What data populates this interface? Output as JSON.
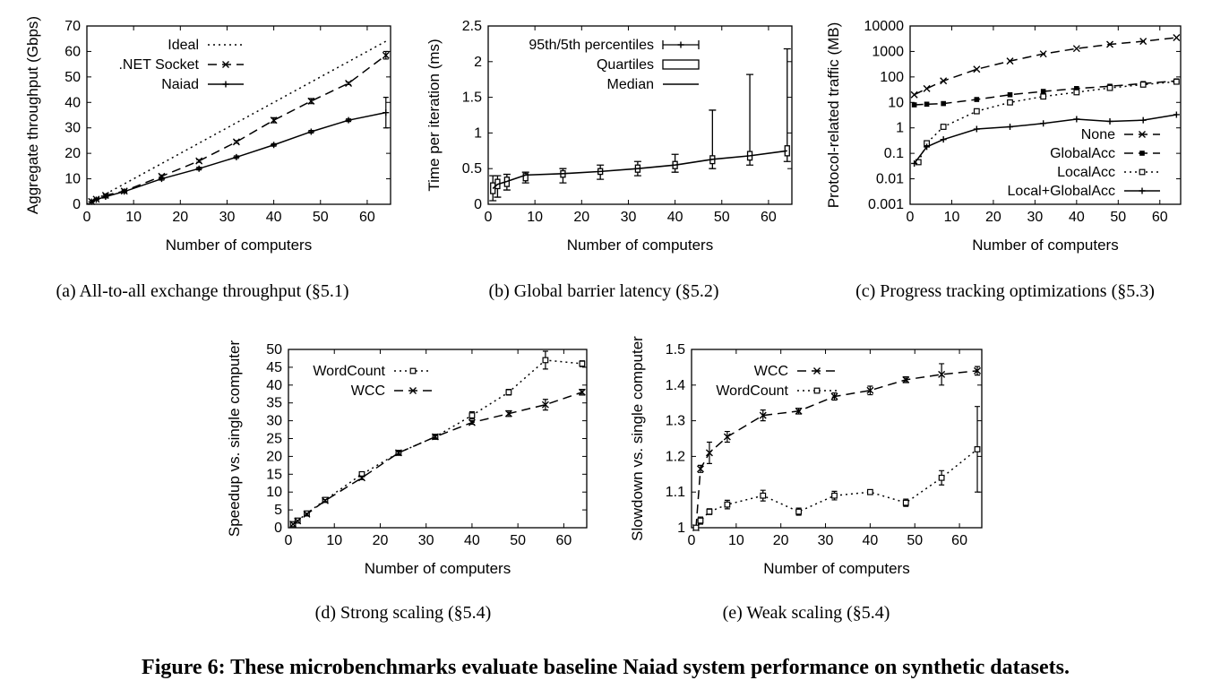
{
  "figure_caption": "Figure 6: These microbenchmarks evaluate baseline Naiad system performance on synthetic datasets.",
  "chart_data": [
    {
      "id": "a",
      "type": "line",
      "caption": "(a) All-to-all exchange throughput (§5.1)",
      "xlabel": "Number of computers",
      "ylabel": "Aggregate throughput (Gbps)",
      "xlim": [
        0,
        65
      ],
      "ylim": [
        0,
        70
      ],
      "xticks": [
        0,
        10,
        20,
        30,
        40,
        50,
        60
      ],
      "yticks": [
        0,
        10,
        20,
        30,
        40,
        50,
        60,
        70
      ],
      "log_y": false,
      "legend_position": "top-left",
      "series": [
        {
          "name": "Ideal",
          "style": "dotted",
          "marker": "none",
          "x": [
            0,
            64
          ],
          "y": [
            0,
            64
          ]
        },
        {
          "name": ".NET Socket",
          "style": "dashed",
          "marker": "x",
          "x": [
            1,
            2,
            4,
            8,
            16,
            24,
            32,
            40,
            48,
            56,
            64
          ],
          "y": [
            1.1,
            2.0,
            3.5,
            5.2,
            11,
            17,
            24.5,
            33,
            40.5,
            47.5,
            58.5
          ],
          "err": [
            0,
            0,
            0.5,
            0.5,
            0.5,
            0.5,
            0.5,
            1.0,
            1.0,
            0.5,
            1.5
          ]
        },
        {
          "name": "Naiad",
          "style": "solid",
          "marker": "plus",
          "x": [
            1,
            2,
            4,
            8,
            16,
            24,
            32,
            40,
            48,
            56,
            64
          ],
          "y": [
            1.0,
            1.8,
            3.0,
            5.0,
            10,
            14,
            18.5,
            23.3,
            28.5,
            33,
            36
          ],
          "err": [
            0,
            0,
            0.5,
            0.5,
            0.5,
            0.5,
            0.5,
            0.5,
            0.5,
            0.5,
            6
          ]
        }
      ]
    },
    {
      "id": "b",
      "type": "line",
      "caption": "(b) Global barrier latency (§5.2)",
      "xlabel": "Number of computers",
      "ylabel": "Time per iteration (ms)",
      "xlim": [
        0,
        65
      ],
      "ylim": [
        0,
        2.5
      ],
      "xticks": [
        0,
        10,
        20,
        30,
        40,
        50,
        60
      ],
      "yticks": [
        0,
        0.5,
        1,
        1.5,
        2,
        2.5
      ],
      "log_y": false,
      "legend_position": "top-left",
      "series": [
        {
          "name": "95th/5th percentiles",
          "style": "solid",
          "marker": "plus",
          "x": [
            1,
            2,
            4,
            8,
            16,
            24,
            32,
            40,
            48,
            56,
            64
          ],
          "low": [
            0.05,
            0.1,
            0.2,
            0.3,
            0.3,
            0.35,
            0.4,
            0.45,
            0.5,
            0.55,
            0.6
          ],
          "high": [
            0.4,
            0.4,
            0.42,
            0.45,
            0.5,
            0.55,
            0.6,
            0.7,
            1.32,
            1.82,
            2.18
          ]
        },
        {
          "name": "Quartiles",
          "style": "box",
          "marker": "none",
          "x": [
            1,
            2,
            4,
            8,
            16,
            24,
            32,
            40,
            48,
            56,
            64
          ],
          "q1": [
            0.15,
            0.22,
            0.25,
            0.33,
            0.38,
            0.42,
            0.45,
            0.5,
            0.57,
            0.62,
            0.68
          ],
          "q3": [
            0.3,
            0.35,
            0.38,
            0.43,
            0.47,
            0.5,
            0.55,
            0.6,
            0.68,
            0.74,
            0.82
          ]
        },
        {
          "name": "Median",
          "style": "solid",
          "marker": "none",
          "x": [
            1,
            2,
            4,
            8,
            16,
            24,
            32,
            40,
            48,
            56,
            64
          ],
          "y": [
            0.22,
            0.28,
            0.32,
            0.41,
            0.43,
            0.46,
            0.5,
            0.55,
            0.63,
            0.68,
            0.75
          ]
        }
      ]
    },
    {
      "id": "c",
      "type": "line",
      "caption": "(c) Progress tracking optimizations (§5.3)",
      "xlabel": "Number of computers",
      "ylabel": "Protocol-related traffic (MB)",
      "xlim": [
        0,
        65
      ],
      "ylim": [
        0.001,
        10000
      ],
      "xticks": [
        0,
        10,
        20,
        30,
        40,
        50,
        60
      ],
      "yticks": [
        0.001,
        0.01,
        0.1,
        1,
        10,
        100,
        1000,
        10000
      ],
      "ytick_labels": [
        "0.001",
        "0.01",
        "0.1",
        "1",
        "10",
        "100",
        "1000",
        "10000"
      ],
      "log_y": true,
      "legend_position": "bottom-right",
      "series": [
        {
          "name": "None",
          "style": "dashed",
          "marker": "x",
          "x": [
            1,
            4,
            8,
            16,
            24,
            32,
            40,
            48,
            56,
            64
          ],
          "y": [
            20,
            35,
            70,
            200,
            420,
            800,
            1300,
            1900,
            2500,
            3500
          ]
        },
        {
          "name": "GlobalAcc",
          "style": "dashed",
          "marker": "square-filled",
          "x": [
            1,
            4,
            8,
            16,
            24,
            32,
            40,
            48,
            56,
            64
          ],
          "y": [
            8,
            8.5,
            9,
            13,
            20,
            27,
            35,
            43,
            55,
            70
          ]
        },
        {
          "name": "LocalAcc",
          "style": "dotted",
          "marker": "square-open",
          "x": [
            2,
            4,
            8,
            16,
            24,
            32,
            40,
            48,
            56,
            64
          ],
          "y": [
            0.045,
            0.25,
            1.1,
            4.5,
            10,
            17,
            25,
            37,
            50,
            65
          ]
        },
        {
          "name": "Local+GlobalAcc",
          "style": "solid",
          "marker": "plus",
          "x": [
            1,
            4,
            8,
            16,
            24,
            32,
            40,
            48,
            56,
            64
          ],
          "y": [
            0.04,
            0.18,
            0.35,
            0.9,
            1.1,
            1.5,
            2.2,
            1.8,
            2.0,
            3.3
          ]
        }
      ]
    },
    {
      "id": "d",
      "type": "line",
      "caption": "(d) Strong scaling (§5.4)",
      "xlabel": "Number of computers",
      "ylabel": "Speedup vs. single computer",
      "xlim": [
        0,
        65
      ],
      "ylim": [
        0,
        50
      ],
      "xticks": [
        0,
        10,
        20,
        30,
        40,
        50,
        60
      ],
      "yticks": [
        0,
        5,
        10,
        15,
        20,
        25,
        30,
        35,
        40,
        45,
        50
      ],
      "log_y": false,
      "legend_position": "top-left",
      "series": [
        {
          "name": "WordCount",
          "style": "dotted",
          "marker": "square-open",
          "x": [
            1,
            2,
            4,
            8,
            16,
            24,
            32,
            40,
            48,
            56,
            64
          ],
          "y": [
            1,
            2,
            4,
            7.8,
            15,
            21,
            25.5,
            31.5,
            38,
            47,
            46
          ],
          "err": [
            0,
            0,
            0.3,
            0.3,
            0.5,
            0.5,
            0.5,
            1.0,
            0.8,
            2.5,
            0.8
          ]
        },
        {
          "name": "WCC",
          "style": "dashed",
          "marker": "x",
          "x": [
            1,
            2,
            4,
            8,
            16,
            24,
            32,
            40,
            48,
            56,
            64
          ],
          "y": [
            1,
            1.9,
            3.8,
            7.6,
            14,
            21,
            25.5,
            29.5,
            32,
            34.5,
            38
          ],
          "err": [
            0,
            0,
            0.3,
            0.3,
            0.5,
            0.5,
            0.5,
            0.5,
            0.8,
            1.5,
            0.8
          ]
        }
      ]
    },
    {
      "id": "e",
      "type": "line",
      "caption": "(e) Weak scaling (§5.4)",
      "xlabel": "Number of computers",
      "ylabel": "Slowdown vs. single computer",
      "xlim": [
        0,
        65
      ],
      "ylim": [
        1,
        1.5
      ],
      "xticks": [
        0,
        10,
        20,
        30,
        40,
        50,
        60
      ],
      "yticks": [
        1,
        1.1,
        1.2,
        1.3,
        1.4,
        1.5
      ],
      "ytick_labels": [
        "1",
        "1.1",
        "1.2",
        "1.3",
        "1.4",
        "1.5"
      ],
      "log_y": false,
      "legend_position": "top-left",
      "series": [
        {
          "name": "WCC",
          "style": "dashed",
          "marker": "x",
          "x": [
            1,
            2,
            4,
            8,
            16,
            24,
            32,
            40,
            48,
            56,
            64
          ],
          "y": [
            1.0,
            1.165,
            1.21,
            1.255,
            1.315,
            1.327,
            1.368,
            1.385,
            1.415,
            1.43,
            1.44
          ],
          "err": [
            0,
            0.01,
            0.03,
            0.015,
            0.015,
            0.008,
            0.01,
            0.012,
            0.008,
            0.03,
            0.012
          ]
        },
        {
          "name": "WordCount",
          "style": "dotted",
          "marker": "square-open",
          "x": [
            1,
            2,
            4,
            8,
            16,
            24,
            32,
            40,
            48,
            56,
            64
          ],
          "y": [
            1.0,
            1.02,
            1.045,
            1.065,
            1.09,
            1.045,
            1.09,
            1.1,
            1.07,
            1.14,
            1.22
          ],
          "err": [
            0.005,
            0.01,
            0.008,
            0.012,
            0.015,
            0.01,
            0.012,
            0.005,
            0.01,
            0.02,
            0.12
          ]
        }
      ]
    }
  ]
}
